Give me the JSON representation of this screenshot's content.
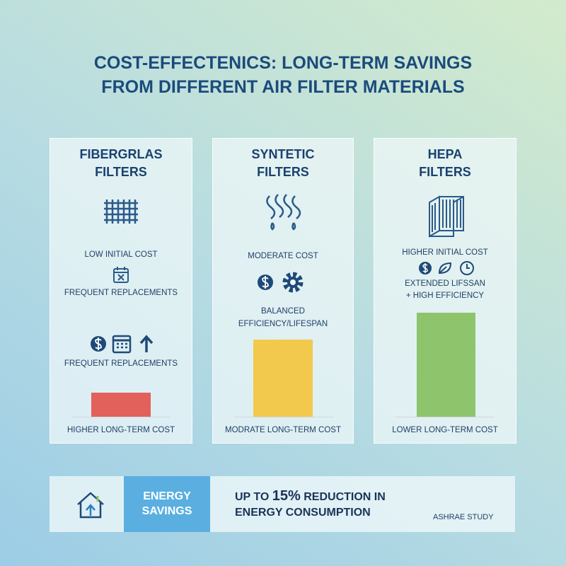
{
  "title": [
    "COST-EFFECTENICS: LONG-TERM SAVINGS",
    "FROM DIFFERENT AIR FILTER MATERIALS"
  ],
  "panels": [
    {
      "title": [
        "FIBERGRLAS",
        "FILTERS"
      ],
      "notes": [
        "LOW INITIAL COST",
        "FREQUENT REPLACEMENTS",
        "FREQUENT REPLACEMENTS"
      ],
      "footer": "HIGHER LONG-TERM COST"
    },
    {
      "title": [
        "SYNTETIC",
        "FILTERS"
      ],
      "notes": [
        "MODERATE COST",
        "BALANCED",
        "EFFICIENCY/LIFESPAN"
      ],
      "footer": "MODRATE LONG-TERM COST"
    },
    {
      "title": [
        "HEPA",
        "FILTERS"
      ],
      "notes": [
        "HIGHER INITIAL COST",
        "EXTENDED LIFSSAN",
        "+ HIGH EFFICIENCY"
      ],
      "footer": "LOWER LONG-TERM COST"
    }
  ],
  "banner": {
    "label": [
      "ENERGY",
      "SAVINGS"
    ],
    "claim_prefix": "UP TO",
    "claim_highlight": "15%",
    "claim_rest": "REDUCTION IN",
    "claim_line2": "ENERGY CONSUMPTION",
    "source": "ASHRAE STUDY"
  }
}
